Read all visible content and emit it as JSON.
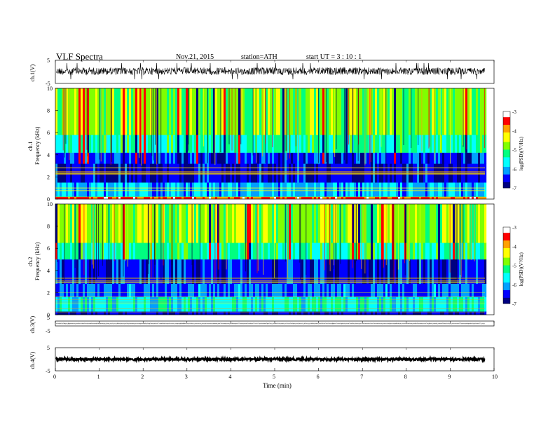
{
  "header": {
    "title": "VLF  Spectra",
    "date": "Nov.21, 2015",
    "station": "station=ATH",
    "start_ut": "start  UT  =   3  : 10 : 1"
  },
  "chart_data": [
    {
      "type": "line",
      "panel": "ch1-waveform",
      "ylabel": "ch.1(V)",
      "y_ticks": [
        "5",
        "-5"
      ],
      "ylim": [
        -5,
        5
      ],
      "xlim": [
        0,
        10
      ],
      "note_level": 0.3,
      "color": "#000000"
    },
    {
      "type": "heatmap",
      "panel": "ch1-spectrogram",
      "ylabel_top": "ch.1",
      "ylabel": "Frequency  (kHz)",
      "y_ticks": [
        "10",
        "8",
        "6",
        "4",
        "2",
        "0"
      ],
      "ylim": [
        0,
        10
      ],
      "xlim": [
        0,
        9.8
      ],
      "colorbar": {
        "label": "log(PSD)(V²/Hz)",
        "ticks": [
          "-3",
          "-4",
          "-5",
          "-6",
          "-7"
        ],
        "range": [
          -7,
          -3
        ]
      },
      "bands": [
        {
          "from_khz": 0,
          "to_khz": 0.2,
          "level": -3.6
        },
        {
          "from_khz": 0.2,
          "to_khz": 1.5,
          "level": -6.0
        },
        {
          "from_khz": 1.5,
          "to_khz": 3.2,
          "level": -6.7
        },
        {
          "from_khz": 3.2,
          "to_khz": 4.2,
          "level": -6.5
        },
        {
          "from_khz": 4.2,
          "to_khz": 5.8,
          "level": -5.4
        },
        {
          "from_khz": 5.8,
          "to_khz": 10,
          "level": -4.8
        }
      ]
    },
    {
      "type": "heatmap",
      "panel": "ch2-spectrogram",
      "ylabel_top": "ch.2",
      "ylabel": "Frequency  (kHz)",
      "y_ticks": [
        "10",
        "8",
        "6",
        "4",
        "2",
        "0"
      ],
      "ylim": [
        0,
        10
      ],
      "xlim": [
        0,
        9.8
      ],
      "colorbar": {
        "label": "log(PSD)(V²/Hz)",
        "ticks": [
          "-3",
          "-4",
          "-5",
          "-6",
          "-7"
        ],
        "range": [
          -7,
          -3
        ]
      },
      "bands": [
        {
          "from_khz": 0,
          "to_khz": 0.3,
          "level": -6.8
        },
        {
          "from_khz": 0.3,
          "to_khz": 1.6,
          "level": -5.6
        },
        {
          "from_khz": 1.6,
          "to_khz": 2.8,
          "level": -6.3
        },
        {
          "from_khz": 2.8,
          "to_khz": 5.0,
          "level": -6.6
        },
        {
          "from_khz": 5.0,
          "to_khz": 6.5,
          "level": -5.3
        },
        {
          "from_khz": 6.5,
          "to_khz": 10,
          "level": -4.7
        }
      ]
    },
    {
      "type": "line",
      "panel": "ch3-waveform",
      "ylabel": "ch.3(V)",
      "y_ticks": [
        "5",
        "-5"
      ],
      "ylim": [
        -5,
        5
      ],
      "xlim": [
        0,
        10
      ],
      "note_level": 0,
      "color": "#777777"
    },
    {
      "type": "line",
      "panel": "ch4-waveform",
      "ylabel": "ch.4(V)",
      "y_ticks": [
        "5",
        "-5"
      ],
      "ylim": [
        -5,
        5
      ],
      "xlim": [
        0,
        10
      ],
      "note_level": 0,
      "color": "#000000"
    }
  ],
  "x_axis": {
    "label": "Time  (min)",
    "ticks": [
      "0",
      "1",
      "2",
      "3",
      "4",
      "5",
      "6",
      "7",
      "8",
      "9",
      "10"
    ]
  },
  "colors": {
    "scale": [
      "#000080",
      "#0000ff",
      "#00a0ff",
      "#00ffff",
      "#00ff80",
      "#80ff00",
      "#ffff00",
      "#ffa000",
      "#ff0000",
      "#ffffff"
    ]
  }
}
